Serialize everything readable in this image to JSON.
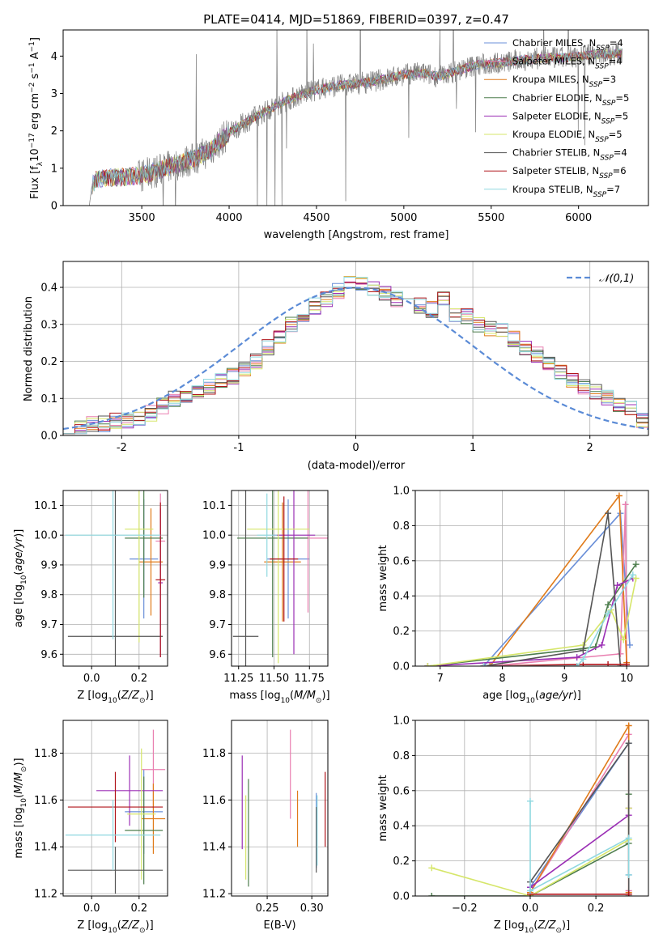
{
  "title": "PLATE=0414, MJD=51869, FIBERID=0397, z=0.47",
  "colors": {
    "Chabrier MILES": "#6a8fd8",
    "Salpeter MILES": "#e97fb0",
    "Kroupa MILES": "#e07b1a",
    "Chabrier ELODIE": "#4d7d4d",
    "Salpeter ELODIE": "#9b2fb5",
    "Kroupa ELODIE": "#d6e66a",
    "Chabrier STELIB": "#555555",
    "Salpeter STELIB": "#b0141a",
    "Kroupa STELIB": "#8fd8e0"
  },
  "chart_data": [
    {
      "type": "line",
      "xlabel": "wavelength [Angstrom, rest frame]",
      "ylabel": "Flux [f_λ 10^-17 erg cm^-2 s^-1 A^-1]",
      "xlim": [
        3050,
        6400
      ],
      "ylim": [
        0,
        4.7
      ],
      "xticks": [
        3500,
        4000,
        4500,
        5000,
        5500,
        6000
      ],
      "yticks": [
        0,
        1,
        2,
        3,
        4
      ],
      "grid": false,
      "legend": "upper-right",
      "legend_entries": [
        "Chabrier MILES, N_SSP=4",
        "Salpeter MILES, N_SSP=4",
        "Kroupa MILES, N_SSP=3",
        "Chabrier ELODIE, N_SSP=5",
        "Salpeter ELODIE, N_SSP=5",
        "Kroupa ELODIE, N_SSP=5",
        "Chabrier STELIB, N_SSP=4",
        "Salpeter STELIB, N_SSP=6",
        "Kroupa STELIB, N_SSP=7"
      ],
      "continuum": {
        "x": [
          3200,
          3215,
          3240,
          3300,
          3400,
          3500,
          3600,
          3700,
          3800,
          3900,
          4000,
          4100,
          4200,
          4300,
          4400,
          4500,
          4600,
          4700,
          4800,
          4900,
          5000,
          5100,
          5200,
          5300,
          5400,
          5500,
          5600,
          5700,
          5800,
          5900,
          6000,
          6100,
          6200,
          6250
        ],
        "y": [
          0.0,
          0.55,
          0.7,
          0.74,
          0.76,
          0.8,
          0.95,
          1.1,
          1.25,
          1.5,
          1.95,
          2.25,
          2.5,
          2.75,
          2.95,
          3.1,
          3.2,
          3.25,
          3.3,
          3.4,
          3.5,
          3.55,
          3.45,
          3.6,
          3.75,
          3.8,
          3.85,
          3.9,
          3.95,
          3.95,
          4.0,
          4.05,
          4.05,
          4.1
        ]
      }
    },
    {
      "type": "line",
      "xlabel": "(data-model)/error",
      "ylabel": "Normed distribution",
      "xlim": [
        -2.5,
        2.5
      ],
      "ylim": [
        0,
        0.47
      ],
      "xticks": [
        -2,
        -1,
        0,
        1,
        2
      ],
      "yticks": [
        0.0,
        0.1,
        0.2,
        0.3,
        0.4
      ],
      "grid": true,
      "legend": "upper-right",
      "legend_entries": [
        "𝒩(0,1)"
      ],
      "bin_edges_start": -2.5,
      "bin_width": 0.1,
      "histogram_base": [
        0.02,
        0.02,
        0.03,
        0.03,
        0.04,
        0.04,
        0.05,
        0.06,
        0.08,
        0.1,
        0.11,
        0.12,
        0.13,
        0.15,
        0.16,
        0.18,
        0.2,
        0.24,
        0.27,
        0.3,
        0.33,
        0.35,
        0.37,
        0.39,
        0.42,
        0.41,
        0.4,
        0.38,
        0.37,
        0.36,
        0.35,
        0.34,
        0.37,
        0.33,
        0.32,
        0.3,
        0.29,
        0.28,
        0.26,
        0.24,
        0.22,
        0.2,
        0.17,
        0.15,
        0.13,
        0.12,
        0.1,
        0.08,
        0.07,
        0.04
      ],
      "normal_curve": {
        "mu": 0,
        "sigma": 1
      }
    },
    {
      "type": "scatter",
      "xlabel": "Z [log10(Z/Z☉)]",
      "ylabel": "age [log10(age/yr)]",
      "xlim": [
        -0.12,
        0.32
      ],
      "ylim": [
        9.56,
        10.15
      ],
      "xticks": [
        0.0,
        0.2
      ],
      "yticks": [
        9.6,
        9.7,
        9.8,
        9.9,
        10.0,
        10.1
      ],
      "grid": true,
      "points": [
        {
          "m": "Chabrier MILES",
          "x": 0.22,
          "y": 9.92,
          "ex": 0.06,
          "ey": 0.2
        },
        {
          "m": "Salpeter MILES",
          "x": 0.29,
          "y": 9.98,
          "ex": 0.02,
          "ey": 0.16
        },
        {
          "m": "Kroupa MILES",
          "x": 0.25,
          "y": 9.91,
          "ex": 0.05,
          "ey": 0.18
        },
        {
          "m": "Chabrier ELODIE",
          "x": 0.22,
          "y": 9.99,
          "ex": 0.08,
          "ey": 0.2
        },
        {
          "m": "Salpeter ELODIE",
          "x": 0.29,
          "y": 9.84,
          "ex": 0.01,
          "ey": 0.25
        },
        {
          "m": "Kroupa ELODIE",
          "x": 0.2,
          "y": 10.02,
          "ex": 0.06,
          "ey": 0.38
        },
        {
          "m": "Chabrier STELIB",
          "x": 0.1,
          "y": 9.66,
          "ex": 0.2,
          "ey": 0.5
        },
        {
          "m": "Salpeter STELIB",
          "x": 0.29,
          "y": 9.85,
          "ex": 0.02,
          "ey": 0.26
        },
        {
          "m": "Kroupa STELIB",
          "x": 0.09,
          "y": 10.0,
          "ex": 0.2,
          "ey": 0.35
        }
      ]
    },
    {
      "type": "scatter",
      "xlabel": "mass [log10(M/M☉)]",
      "ylabel": "",
      "xlim": [
        11.2,
        11.88
      ],
      "ylim": [
        9.56,
        10.15
      ],
      "xticks": [
        11.25,
        11.5,
        11.75
      ],
      "yticks": [
        9.6,
        9.7,
        9.8,
        9.9,
        10.0,
        10.1
      ],
      "grid": true,
      "points": [
        {
          "m": "Chabrier MILES",
          "x": 11.6,
          "y": 9.92,
          "ex": 0.15,
          "ey": 0.2
        },
        {
          "m": "Salpeter MILES",
          "x": 11.74,
          "y": 9.99,
          "ex": 0.14,
          "ey": 0.25
        },
        {
          "m": "Kroupa MILES",
          "x": 11.56,
          "y": 9.91,
          "ex": 0.13,
          "ey": 0.2
        },
        {
          "m": "Chabrier ELODIE",
          "x": 11.49,
          "y": 9.99,
          "ex": 0.25,
          "ey": 0.4
        },
        {
          "m": "Salpeter ELODIE",
          "x": 11.64,
          "y": 10.0,
          "ex": 0.15,
          "ey": 0.4
        },
        {
          "m": "Kroupa ELODIE",
          "x": 11.53,
          "y": 10.02,
          "ex": 0.22,
          "ey": 0.45
        },
        {
          "m": "Chabrier STELIB",
          "x": 11.3,
          "y": 9.66,
          "ex": 0.09,
          "ey": 0.49
        },
        {
          "m": "Salpeter STELIB",
          "x": 11.57,
          "y": 9.92,
          "ex": 0.1,
          "ey": 0.21
        },
        {
          "m": "Kroupa STELIB",
          "x": 11.45,
          "y": 10.0,
          "ex": 0.07,
          "ey": 0.14
        }
      ]
    },
    {
      "type": "line",
      "xlabel": "age [log10(age/yr)]",
      "ylabel": "mass weight",
      "xlim": [
        6.6,
        10.35
      ],
      "ylim": [
        0,
        1.0
      ],
      "xticks": [
        7,
        8,
        9,
        10
      ],
      "yticks": [
        0.0,
        0.2,
        0.4,
        0.6,
        0.8,
        1.0
      ],
      "grid": true,
      "series": [
        {
          "m": "Chabrier MILES",
          "x": [
            7.7,
            9.9,
            10.05
          ],
          "y": [
            0.0,
            0.87,
            0.12
          ]
        },
        {
          "m": "Salpeter MILES",
          "x": [
            7.8,
            9.9,
            9.98,
            10.0
          ],
          "y": [
            0.0,
            0.07,
            0.92,
            0.0
          ]
        },
        {
          "m": "Kroupa MILES",
          "x": [
            7.8,
            9.88,
            10.0
          ],
          "y": [
            0.0,
            0.97,
            0.02
          ]
        },
        {
          "m": "Chabrier ELODIE",
          "x": [
            6.8,
            9.3,
            9.5,
            9.7,
            10.15
          ],
          "y": [
            0.0,
            0.1,
            0.11,
            0.35,
            0.58
          ]
        },
        {
          "m": "Salpeter ELODIE",
          "x": [
            6.8,
            9.2,
            9.6,
            9.85,
            10.1
          ],
          "y": [
            0.0,
            0.05,
            0.12,
            0.46,
            0.5
          ]
        },
        {
          "m": "Kroupa ELODIE",
          "x": [
            6.8,
            9.3,
            9.75,
            9.95,
            10.15
          ],
          "y": [
            0.0,
            0.12,
            0.32,
            0.15,
            0.5
          ]
        },
        {
          "m": "Chabrier STELIB",
          "x": [
            7.7,
            9.3,
            9.7,
            9.9
          ],
          "y": [
            0.0,
            0.09,
            0.87,
            0.0
          ]
        },
        {
          "m": "Salpeter STELIB",
          "x": [
            7.7,
            9.3,
            9.7,
            10.0
          ],
          "y": [
            0.0,
            0.01,
            0.01,
            0.01
          ]
        },
        {
          "m": "Kroupa STELIB",
          "x": [
            7.7,
            9.2,
            9.3,
            9.7,
            10.1
          ],
          "y": [
            0.0,
            0.0,
            0.04,
            0.3,
            0.52
          ]
        }
      ]
    },
    {
      "type": "scatter",
      "xlabel": "Z [log10(Z/Z☉)]",
      "ylabel": "mass [log10(M/M☉)]",
      "xlim": [
        -0.12,
        0.32
      ],
      "ylim": [
        11.19,
        11.94
      ],
      "xticks": [
        0.0,
        0.2
      ],
      "yticks": [
        11.2,
        11.4,
        11.6,
        11.8
      ],
      "grid": true,
      "points": [
        {
          "m": "Chabrier MILES",
          "x": 0.22,
          "y": 11.55,
          "ex": 0.08,
          "ey": 0.18
        },
        {
          "m": "Salpeter MILES",
          "x": 0.26,
          "y": 11.73,
          "ex": 0.05,
          "ey": 0.17
        },
        {
          "m": "Kroupa MILES",
          "x": 0.26,
          "y": 11.52,
          "ex": 0.05,
          "ey": 0.15
        },
        {
          "m": "Chabrier ELODIE",
          "x": 0.22,
          "y": 11.47,
          "ex": 0.08,
          "ey": 0.23
        },
        {
          "m": "Salpeter ELODIE",
          "x": 0.16,
          "y": 11.64,
          "ex": 0.14,
          "ey": 0.15
        },
        {
          "m": "Kroupa ELODIE",
          "x": 0.21,
          "y": 11.54,
          "ex": 0.06,
          "ey": 0.28
        },
        {
          "m": "Chabrier STELIB",
          "x": 0.1,
          "y": 11.3,
          "ex": 0.2,
          "ey": 0.1
        },
        {
          "m": "Salpeter STELIB",
          "x": 0.1,
          "y": 11.57,
          "ex": 0.2,
          "ey": 0.15
        },
        {
          "m": "Kroupa STELIB",
          "x": 0.09,
          "y": 11.45,
          "ex": 0.2,
          "ey": 0.15
        }
      ]
    },
    {
      "type": "scatter",
      "xlabel": "E(B-V)",
      "ylabel": "",
      "xlim": [
        0.21,
        0.318
      ],
      "ylim": [
        11.19,
        11.94
      ],
      "xticks": [
        0.25,
        0.3
      ],
      "yticks": [
        11.2,
        11.4,
        11.6,
        11.8
      ],
      "grid": true,
      "points": [
        {
          "m": "Chabrier MILES",
          "x": 0.305,
          "y": 11.47,
          "ey": 0.16
        },
        {
          "m": "Salpeter MILES",
          "x": 0.276,
          "y": 11.71,
          "ey": 0.19
        },
        {
          "m": "Kroupa MILES",
          "x": 0.284,
          "y": 11.52,
          "ey": 0.12
        },
        {
          "m": "Chabrier ELODIE",
          "x": 0.229,
          "y": 11.46,
          "ey": 0.23
        },
        {
          "m": "Salpeter ELODIE",
          "x": 0.222,
          "y": 11.59,
          "ey": 0.2
        },
        {
          "m": "Kroupa ELODIE",
          "x": 0.226,
          "y": 11.44,
          "ey": 0.18
        },
        {
          "m": "Chabrier STELIB",
          "x": 0.305,
          "y": 11.43,
          "ey": 0.14
        },
        {
          "m": "Salpeter STELIB",
          "x": 0.315,
          "y": 11.56,
          "ey": 0.16
        },
        {
          "m": "Kroupa STELIB",
          "x": 0.306,
          "y": 11.47,
          "ey": 0.15
        }
      ]
    },
    {
      "type": "line",
      "xlabel": "Z [log10(Z/Z☉)]",
      "ylabel": "mass weight",
      "xlim": [
        -0.35,
        0.36
      ],
      "ylim": [
        0,
        1.0
      ],
      "xticks": [
        -0.2,
        0.0,
        0.2
      ],
      "yticks": [
        0.0,
        0.2,
        0.4,
        0.6,
        0.8,
        1.0
      ],
      "grid": true,
      "series": [
        {
          "m": "Chabrier MILES",
          "x": [
            0.0,
            0.3,
            0.3
          ],
          "y": [
            0.05,
            0.87,
            0.12
          ]
        },
        {
          "m": "Salpeter MILES",
          "x": [
            0.0,
            0.3,
            0.3
          ],
          "y": [
            0.02,
            0.92,
            0.03
          ]
        },
        {
          "m": "Kroupa MILES",
          "x": [
            0.0,
            0.3,
            0.3
          ],
          "y": [
            0.02,
            0.97,
            0.02
          ]
        },
        {
          "m": "Chabrier ELODIE",
          "x": [
            -0.3,
            0.0,
            0.3,
            0.3
          ],
          "y": [
            0.0,
            0.0,
            0.3,
            0.58
          ]
        },
        {
          "m": "Salpeter ELODIE",
          "x": [
            0.0,
            0.3,
            0.3
          ],
          "y": [
            0.05,
            0.46,
            0.5
          ]
        },
        {
          "m": "Kroupa ELODIE",
          "x": [
            -0.3,
            0.0,
            0.3,
            0.3
          ],
          "y": [
            0.16,
            0.0,
            0.32,
            0.5
          ]
        },
        {
          "m": "Chabrier STELIB",
          "x": [
            0.0,
            0.3,
            0.3
          ],
          "y": [
            0.08,
            0.87,
            0.0
          ]
        },
        {
          "m": "Salpeter STELIB",
          "x": [
            0.0,
            0.3,
            0.3
          ],
          "y": [
            0.01,
            0.01,
            0.01
          ]
        },
        {
          "m": "Kroupa STELIB",
          "x": [
            0.0,
            0.0,
            0.3,
            0.3
          ],
          "y": [
            0.54,
            0.03,
            0.33,
            0.12
          ]
        }
      ]
    }
  ]
}
